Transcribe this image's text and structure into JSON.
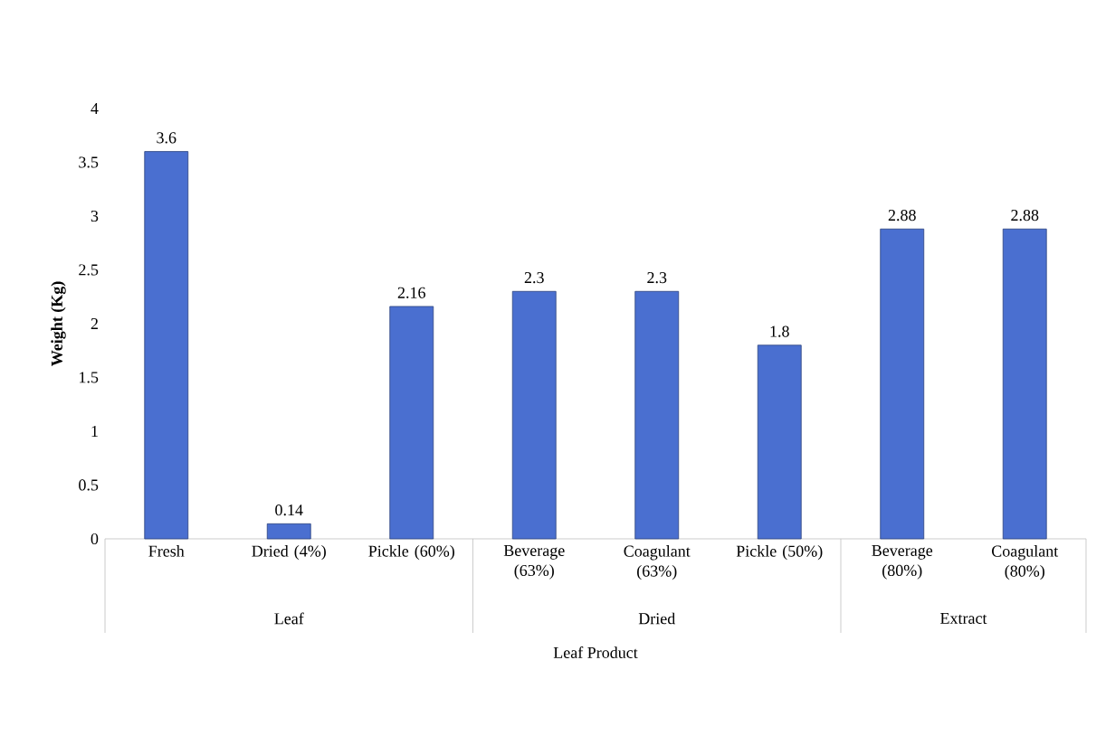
{
  "chart_data": {
    "type": "bar",
    "xlabel": "Leaf Product",
    "ylabel": "Weight (Kg)",
    "categories": [
      "Fresh",
      "Dried (4%)",
      "Pickle (60%)",
      "Beverage (63%)",
      "Coagulant (63%)",
      "Pickle (50%)",
      "Beverage (80%)",
      "Coagulant (80%)"
    ],
    "values": [
      3.6,
      0.14,
      2.16,
      2.3,
      2.3,
      1.8,
      2.88,
      2.88
    ],
    "color": "#4a6fd0",
    "data_labels": true,
    "ylim": [
      0,
      4
    ],
    "yticks": [
      0,
      0.5,
      1,
      1.5,
      2,
      2.5,
      3,
      3.5,
      4
    ],
    "annotations": [
      "Leaf",
      "Dried",
      "Extract"
    ]
  }
}
